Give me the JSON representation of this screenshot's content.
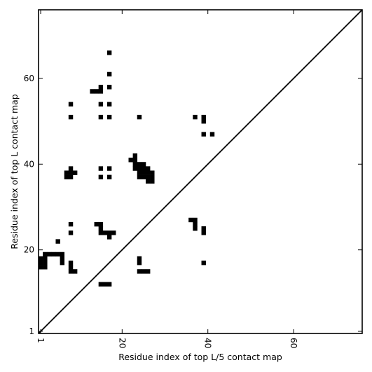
{
  "chart_data": {
    "type": "heatmap",
    "xlabel": "Residue index of top L/5 contact map",
    "ylabel": "Residue index of top L contact map",
    "xlim": [
      0.5,
      76
    ],
    "ylim": [
      0.5,
      76
    ],
    "xticks": [
      1,
      20,
      40,
      60
    ],
    "yticks": [
      1,
      20,
      40,
      60
    ],
    "diagonal_line": true,
    "cell_color": "#000000",
    "cells": [
      [
        1,
        16
      ],
      [
        1,
        17
      ],
      [
        1,
        18
      ],
      [
        2,
        16
      ],
      [
        2,
        17
      ],
      [
        2,
        18
      ],
      [
        2,
        19
      ],
      [
        3,
        19
      ],
      [
        4,
        19
      ],
      [
        5,
        19
      ],
      [
        6,
        17
      ],
      [
        6,
        18
      ],
      [
        6,
        19
      ],
      [
        5,
        22
      ],
      [
        8,
        15
      ],
      [
        8,
        16
      ],
      [
        8,
        17
      ],
      [
        9,
        15
      ],
      [
        8,
        24
      ],
      [
        8,
        26
      ],
      [
        7,
        37
      ],
      [
        7,
        38
      ],
      [
        8,
        37
      ],
      [
        8,
        38
      ],
      [
        8,
        39
      ],
      [
        9,
        38
      ],
      [
        8,
        51
      ],
      [
        8,
        54
      ],
      [
        14,
        26
      ],
      [
        15,
        24
      ],
      [
        15,
        25
      ],
      [
        15,
        26
      ],
      [
        16,
        24
      ],
      [
        17,
        23
      ],
      [
        17,
        24
      ],
      [
        18,
        24
      ],
      [
        15,
        12
      ],
      [
        16,
        12
      ],
      [
        17,
        12
      ],
      [
        15,
        37
      ],
      [
        15,
        39
      ],
      [
        17,
        37
      ],
      [
        17,
        39
      ],
      [
        13,
        57
      ],
      [
        14,
        57
      ],
      [
        15,
        57
      ],
      [
        15,
        58
      ],
      [
        15,
        54
      ],
      [
        15,
        51
      ],
      [
        17,
        51
      ],
      [
        17,
        54
      ],
      [
        17,
        58
      ],
      [
        17,
        61
      ],
      [
        17,
        66
      ],
      [
        24,
        15
      ],
      [
        25,
        15
      ],
      [
        26,
        15
      ],
      [
        24,
        17
      ],
      [
        24,
        18
      ],
      [
        22,
        41
      ],
      [
        23,
        39
      ],
      [
        23,
        40
      ],
      [
        23,
        41
      ],
      [
        23,
        42
      ],
      [
        24,
        37
      ],
      [
        24,
        38
      ],
      [
        24,
        39
      ],
      [
        24,
        40
      ],
      [
        25,
        37
      ],
      [
        25,
        38
      ],
      [
        25,
        39
      ],
      [
        25,
        40
      ],
      [
        26,
        36
      ],
      [
        26,
        37
      ],
      [
        26,
        38
      ],
      [
        26,
        39
      ],
      [
        27,
        36
      ],
      [
        27,
        37
      ],
      [
        27,
        38
      ],
      [
        24,
        51
      ],
      [
        36,
        27
      ],
      [
        37,
        25
      ],
      [
        37,
        26
      ],
      [
        37,
        27
      ],
      [
        39,
        24
      ],
      [
        39,
        25
      ],
      [
        39,
        17
      ],
      [
        37,
        51
      ],
      [
        39,
        47
      ],
      [
        39,
        50
      ],
      [
        39,
        51
      ],
      [
        41,
        47
      ]
    ]
  }
}
